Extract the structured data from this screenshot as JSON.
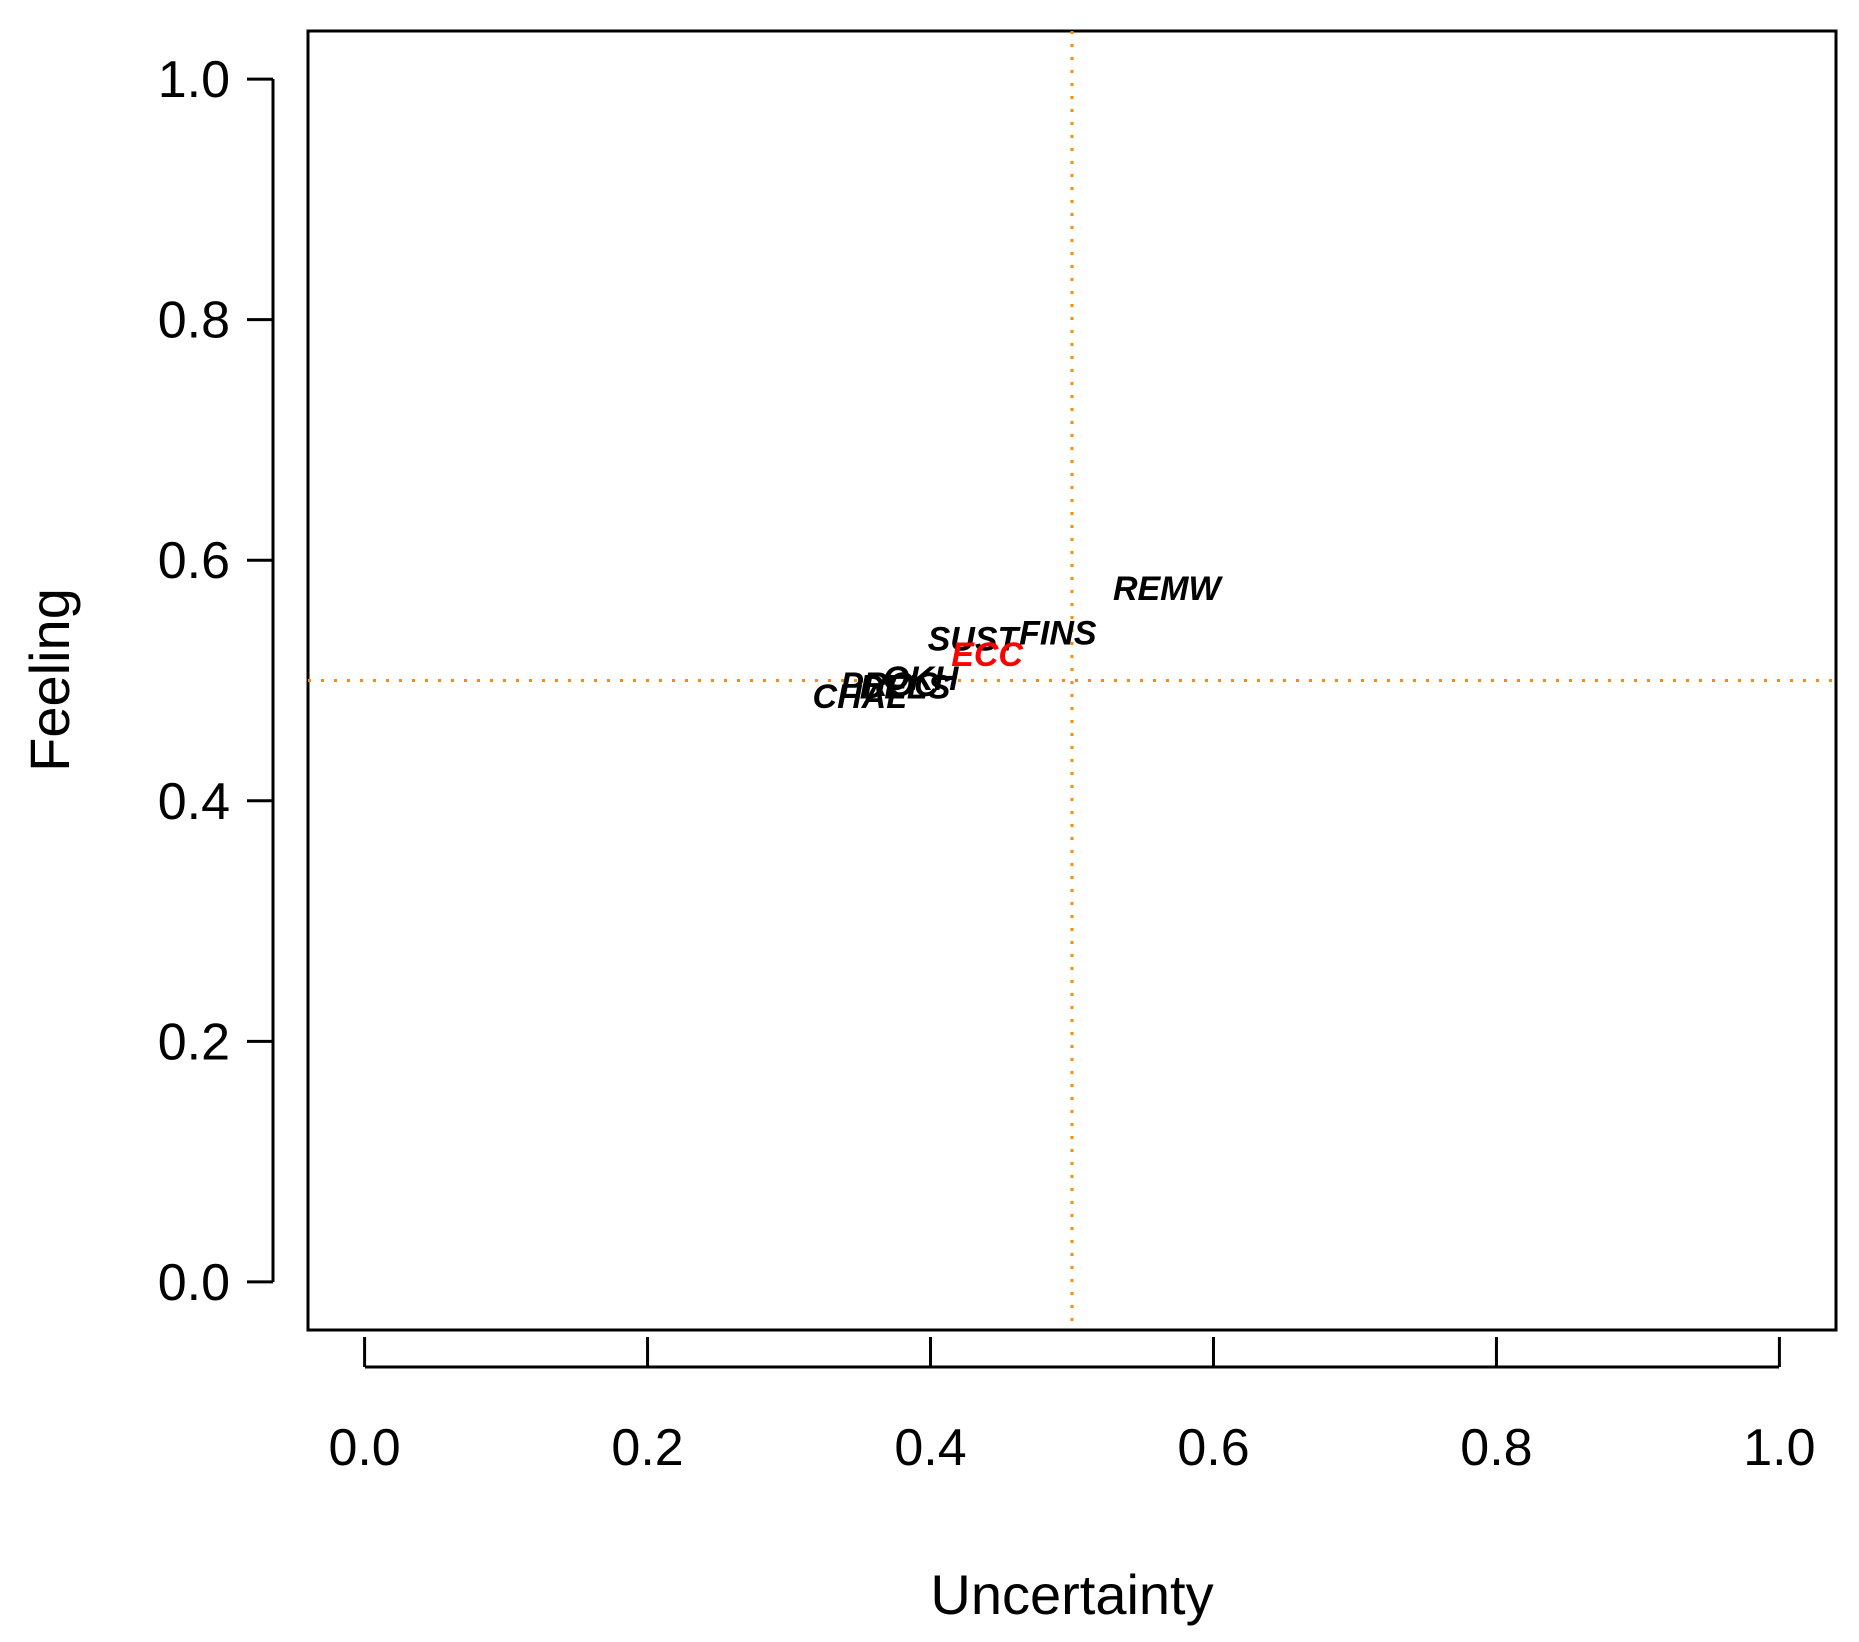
{
  "chart_data": {
    "type": "scatter",
    "title": "",
    "xlabel": "Uncertainty",
    "ylabel": "Feeling",
    "xlim": [
      -0.04,
      1.04
    ],
    "ylim": [
      -0.04,
      1.04
    ],
    "xticks": [
      0.0,
      0.2,
      0.4,
      0.6,
      0.8,
      1.0
    ],
    "yticks": [
      0.0,
      0.2,
      0.4,
      0.6,
      0.8,
      1.0
    ],
    "tick_labels": [
      "0.0",
      "0.2",
      "0.4",
      "0.6",
      "0.8",
      "1.0"
    ],
    "grid": false,
    "reference_lines": {
      "x": 0.5,
      "y": 0.5,
      "color": "#ff8c00",
      "style": "dotted"
    },
    "points": [
      {
        "label": "REMW",
        "x": 0.567,
        "y": 0.577,
        "color": "#000000"
      },
      {
        "label": "FINS",
        "x": 0.49,
        "y": 0.54,
        "color": "#000000"
      },
      {
        "label": "SUST",
        "x": 0.43,
        "y": 0.535,
        "color": "#000000"
      },
      {
        "label": "ECC",
        "x": 0.44,
        "y": 0.522,
        "color": "#ff0000"
      },
      {
        "label": "OKH",
        "x": 0.393,
        "y": 0.502,
        "color": "#000000"
      },
      {
        "label": "DELS",
        "x": 0.382,
        "y": 0.495,
        "color": "#000000"
      },
      {
        "label": "PROC",
        "x": 0.371,
        "y": 0.497,
        "color": "#000000"
      },
      {
        "label": "CHAL",
        "x": 0.35,
        "y": 0.487,
        "color": "#000000"
      }
    ]
  }
}
